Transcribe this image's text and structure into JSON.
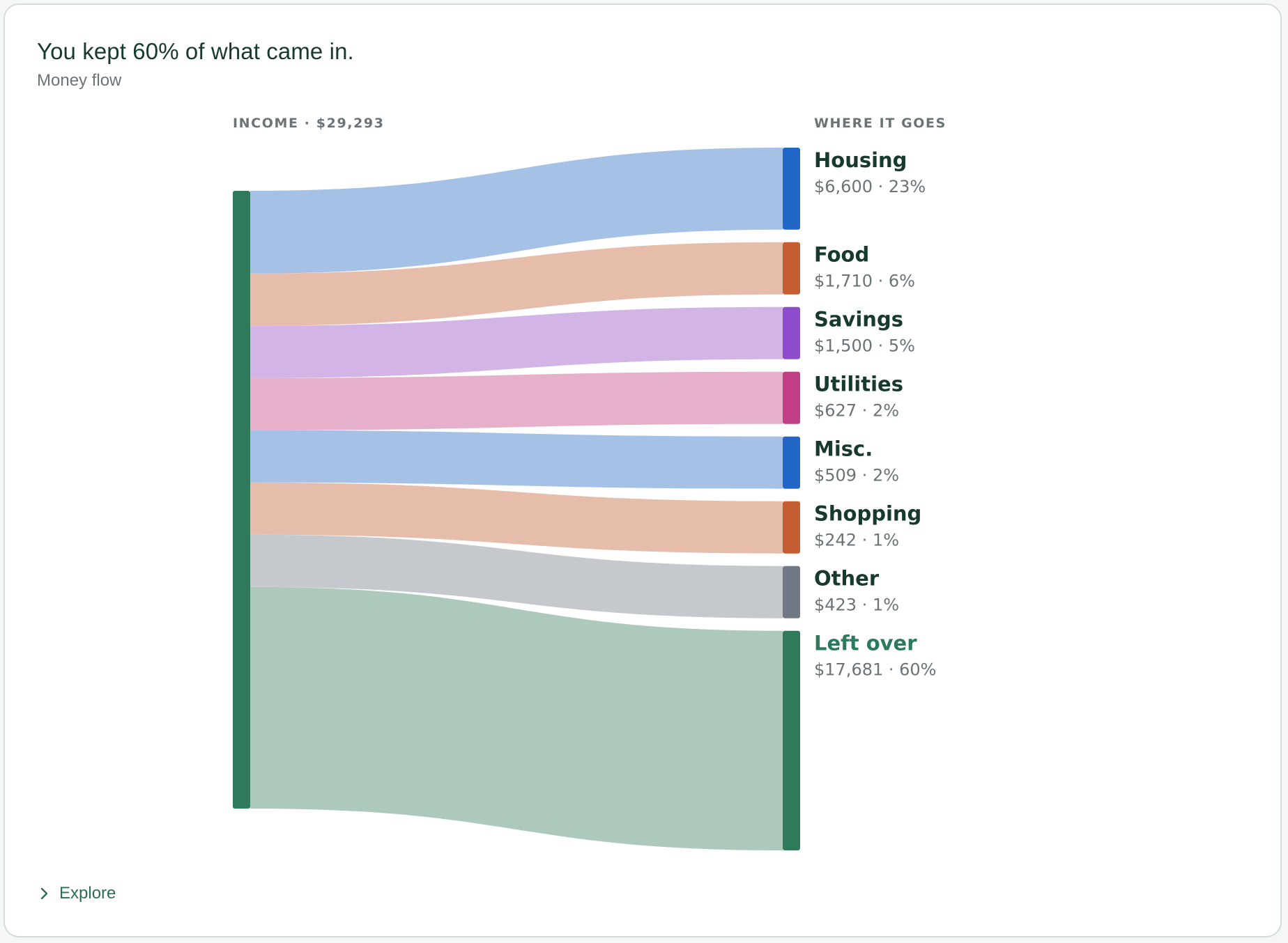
{
  "card": {
    "title": "You kept 60% of what came in.",
    "subtitle": "Money flow",
    "explore_label": "Explore"
  },
  "chart_data": {
    "type": "sankey",
    "source": {
      "header": "INCOME · $29,293",
      "name": "Income",
      "value": 29293,
      "color": "#2e7a5b"
    },
    "targets_header": "WHERE IT GOES",
    "targets": [
      {
        "name": "Housing",
        "value": 6600,
        "value_label": "$6,600 · 23%",
        "color": "#2266c8",
        "flow_color": "#a6c1e6",
        "name_color": "#173a2c"
      },
      {
        "name": "Food",
        "value": 1710,
        "value_label": "$1,710 · 6%",
        "color": "#c45d31",
        "flow_color": "#e6bdab",
        "name_color": "#173a2c"
      },
      {
        "name": "Savings",
        "value": 1500,
        "value_label": "$1,500 · 5%",
        "color": "#8e4dcc",
        "flow_color": "#d2b4e6",
        "name_color": "#173a2c"
      },
      {
        "name": "Utilities",
        "value": 627,
        "value_label": "$627 · 2%",
        "color": "#c23e84",
        "flow_color": "#e6b0cb",
        "name_color": "#173a2c"
      },
      {
        "name": "Misc.",
        "value": 509,
        "value_label": "$509 · 2%",
        "color": "#2266c8",
        "flow_color": "#a6c1e6",
        "name_color": "#173a2c"
      },
      {
        "name": "Shopping",
        "value": 242,
        "value_label": "$242 · 1%",
        "color": "#c45d31",
        "flow_color": "#e6bdab",
        "name_color": "#173a2c"
      },
      {
        "name": "Other",
        "value": 423,
        "value_label": "$423 · 1%",
        "color": "#707985",
        "flow_color": "#c5c8cc",
        "name_color": "#173a2c"
      },
      {
        "name": "Left over",
        "value": 17681,
        "value_label": "$17,681 · 60%",
        "color": "#2e7a5b",
        "flow_color": "#adc9bc",
        "name_color": "#2c7a5a"
      }
    ]
  }
}
